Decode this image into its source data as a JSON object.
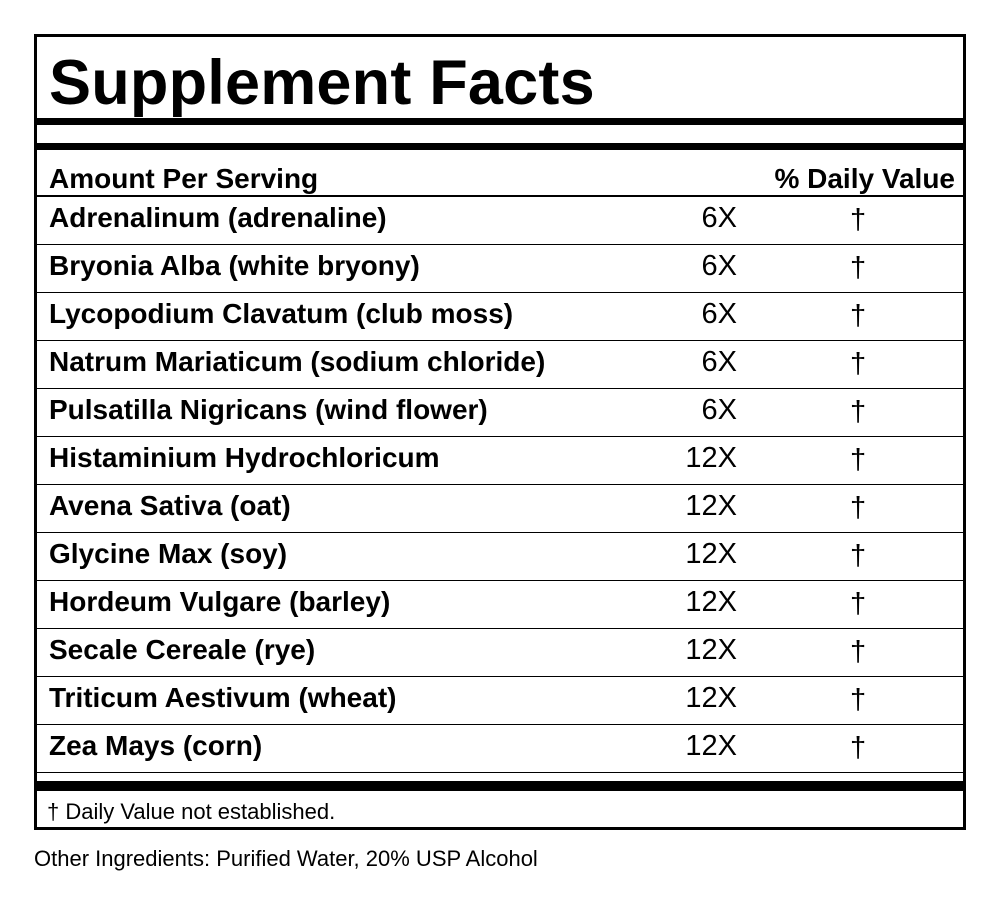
{
  "label": {
    "title": "Supplement Facts",
    "header": {
      "amount_per_serving": "Amount Per Serving",
      "daily_value": "% Daily Value"
    },
    "ingredients": [
      {
        "name": "Adrenalinum (adrenaline)",
        "amount": "6X",
        "dv": "†"
      },
      {
        "name": "Bryonia Alba (white bryony)",
        "amount": "6X",
        "dv": "†"
      },
      {
        "name": "Lycopodium Clavatum (club moss)",
        "amount": "6X",
        "dv": "†"
      },
      {
        "name": "Natrum Mariaticum (sodium chloride)",
        "amount": "6X",
        "dv": "†"
      },
      {
        "name": "Pulsatilla Nigricans (wind flower)",
        "amount": "6X",
        "dv": "†"
      },
      {
        "name": "Histaminium Hydrochloricum",
        "amount": "12X",
        "dv": "†"
      },
      {
        "name": "Avena Sativa (oat)",
        "amount": "12X",
        "dv": "†"
      },
      {
        "name": "Glycine Max (soy)",
        "amount": "12X",
        "dv": "†"
      },
      {
        "name": "Hordeum Vulgare (barley)",
        "amount": "12X",
        "dv": "†"
      },
      {
        "name": "Secale Cereale (rye)",
        "amount": "12X",
        "dv": "†"
      },
      {
        "name": "Triticum Aestivum (wheat)",
        "amount": "12X",
        "dv": "†"
      },
      {
        "name": "Zea Mays (corn)",
        "amount": "12X",
        "dv": "†"
      }
    ],
    "footnote": "† Daily Value not established."
  },
  "other_ingredients": "Other Ingredients: Purified Water, 20% USP Alcohol"
}
